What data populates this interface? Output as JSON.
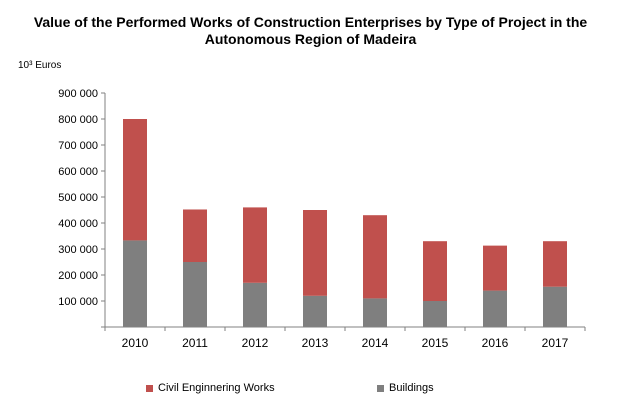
{
  "chart_data": {
    "type": "bar",
    "stacked": true,
    "title": "Value of the Performed Works of Construction  Enterprises  by Type of Project in the Autonomous  Region of Madeira",
    "title_lines": [
      "Value of the Performed Works of Construction  Enterprises  by Type of Project in the",
      "Autonomous  Region of Madeira"
    ],
    "ylabel": "10³ Euros",
    "xlabel": "",
    "categories": [
      "2010",
      "2011",
      "2012",
      "2013",
      "2014",
      "2015",
      "2016",
      "2017"
    ],
    "ylim": [
      0,
      900000
    ],
    "yticks": [
      100000,
      200000,
      300000,
      400000,
      500000,
      600000,
      700000,
      800000,
      900000
    ],
    "ytick_labels": [
      "100 000",
      "200 000",
      "300 000",
      "400 000",
      "500 000",
      "600 000",
      "700 000",
      "800 000",
      "900 000"
    ],
    "grid": false,
    "legend": "bottom",
    "series": [
      {
        "name": "Buildings",
        "color": "#7f7f7f",
        "values": [
          333000,
          250000,
          170000,
          120000,
          110000,
          100000,
          140000,
          155000
        ]
      },
      {
        "name": "Civil Enginnering Works",
        "color": "#c0504d",
        "values": [
          467000,
          202000,
          290000,
          330000,
          320000,
          230000,
          173000,
          175000
        ]
      }
    ]
  }
}
